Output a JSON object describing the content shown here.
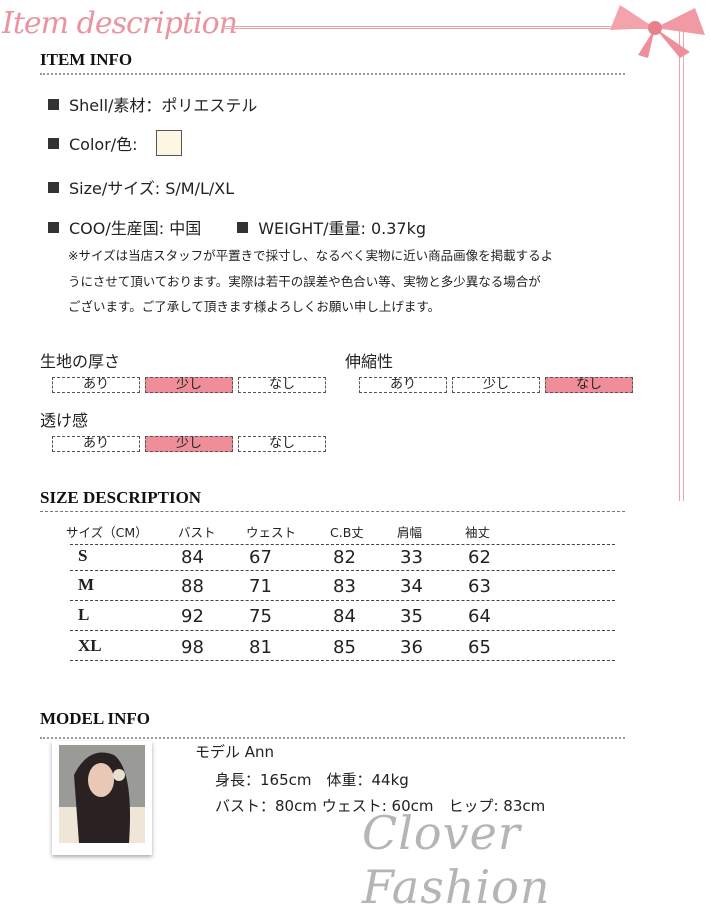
{
  "header": {
    "title": "Item description",
    "colors": {
      "accent": "#e9949e",
      "selected": "#ef8e98"
    },
    "decoration": "ribbon-bow-icon"
  },
  "item_info": {
    "heading": "ITEM INFO",
    "shell": "Shell/素材：ポリエステル",
    "color_label": "Color/色:",
    "color_swatch": "#fdf6e3",
    "size": "Size/サイズ: S/M/L/XL",
    "coo": "COO/生産国: 中国",
    "weight": "WEIGHT/重量: 0.37kg",
    "note": [
      "※サイズは当店スタッフが平置きで採寸し、なるべく実物に近い商品画像を掲載するよ",
      "うにさせて頂いております。実際は若干の誤差や色合い等、実物と多少異なる場合が",
      "ございます。ご了承して頂きます様よろしくお願い申し上げます。"
    ]
  },
  "attributes": [
    {
      "label": "生地の厚さ",
      "options": [
        "あり",
        "少し",
        "なし"
      ],
      "selected": "少し"
    },
    {
      "label": "伸縮性",
      "options": [
        "あり",
        "少し",
        "なし"
      ],
      "selected": "なし"
    },
    {
      "label": "透け感",
      "options": [
        "あり",
        "少し",
        "なし"
      ],
      "selected": "少し"
    }
  ],
  "size_table": {
    "heading": "SIZE DESCRIPTION",
    "headers": [
      "サイズ（CM）",
      "バスト",
      "ウェスト",
      "C.B丈",
      "肩幅",
      "袖丈"
    ],
    "rows": [
      [
        "S",
        "84",
        "67",
        "82",
        "33",
        "62"
      ],
      [
        "M",
        "88",
        "71",
        "83",
        "34",
        "63"
      ],
      [
        "L",
        "92",
        "75",
        "84",
        "35",
        "64"
      ],
      [
        "XL",
        "98",
        "81",
        "85",
        "36",
        "65"
      ]
    ]
  },
  "model": {
    "heading": "MODEL INFO",
    "name": "モデル Ann",
    "line1": "身長：165cm　体重：44kg",
    "line2": "バスト：80cm ウェスト: 60cm　ヒップ: 83cm"
  },
  "watermark": "Clover Fashion"
}
